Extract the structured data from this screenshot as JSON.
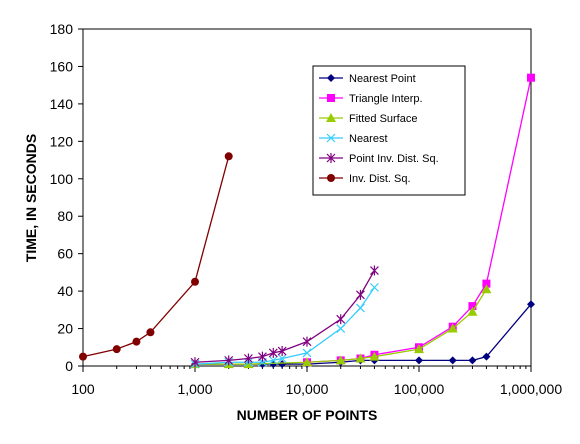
{
  "chart_data": {
    "type": "line",
    "title": "",
    "xlabel": "NUMBER OF POINTS",
    "ylabel": "TIME, IN SECONDS",
    "x_scale": "log",
    "xlim": [
      100,
      1000000
    ],
    "ylim": [
      0,
      180
    ],
    "x_ticks": [
      100,
      1000,
      10000,
      100000,
      1000000
    ],
    "x_tick_labels": [
      "100",
      "1,000",
      "10,000",
      "100,000",
      "1,000,000"
    ],
    "y_ticks": [
      0,
      20,
      40,
      60,
      80,
      100,
      120,
      140,
      160,
      180
    ],
    "y_tick_labels": [
      "0",
      "20",
      "40",
      "60",
      "80",
      "100",
      "120",
      "140",
      "160",
      "180"
    ],
    "grid": false,
    "legend_position": "top-right",
    "series": [
      {
        "name": "Nearest Point",
        "color": "#000080",
        "marker": "diamond",
        "x": [
          1000,
          2000,
          3000,
          4000,
          5000,
          6000,
          10000,
          20000,
          30000,
          40000,
          100000,
          200000,
          300000,
          400000,
          1000000
        ],
        "y": [
          1,
          1,
          1,
          1,
          1,
          1,
          1,
          2,
          3,
          3,
          3,
          3,
          3,
          5,
          33
        ]
      },
      {
        "name": "Triangle Interp.",
        "color": "#FF00FF",
        "marker": "square",
        "x": [
          10000,
          20000,
          30000,
          40000,
          100000,
          200000,
          300000,
          400000,
          1000000
        ],
        "y": [
          2,
          3,
          4,
          6,
          10,
          21,
          32,
          44,
          154
        ]
      },
      {
        "name": "Fitted Surface",
        "color": "#99CC00",
        "marker": "triangle",
        "x": [
          1000,
          2000,
          3000,
          10000,
          20000,
          30000,
          40000,
          100000,
          200000,
          300000,
          400000
        ],
        "y": [
          1,
          1,
          1,
          2,
          3,
          4,
          5,
          9,
          20,
          29,
          41
        ]
      },
      {
        "name": "Nearest",
        "color": "#33CCFF",
        "marker": "x",
        "x": [
          1000,
          2000,
          3000,
          4000,
          5000,
          6000,
          10000,
          20000,
          30000,
          40000
        ],
        "y": [
          1,
          2,
          2,
          2,
          3,
          4,
          7,
          20,
          31,
          42
        ]
      },
      {
        "name": "Point Inv. Dist. Sq.",
        "color": "#800080",
        "marker": "star",
        "x": [
          1000,
          2000,
          3000,
          4000,
          5000,
          6000,
          10000,
          20000,
          30000,
          40000
        ],
        "y": [
          2,
          3,
          4,
          5,
          7,
          8,
          13,
          25,
          38,
          51
        ]
      },
      {
        "name": "Inv. Dist. Sq.",
        "color": "#800000",
        "marker": "circle",
        "x": [
          100,
          200,
          300,
          400,
          1000,
          2000
        ],
        "y": [
          5,
          9,
          13,
          18,
          45,
          112
        ]
      }
    ]
  }
}
